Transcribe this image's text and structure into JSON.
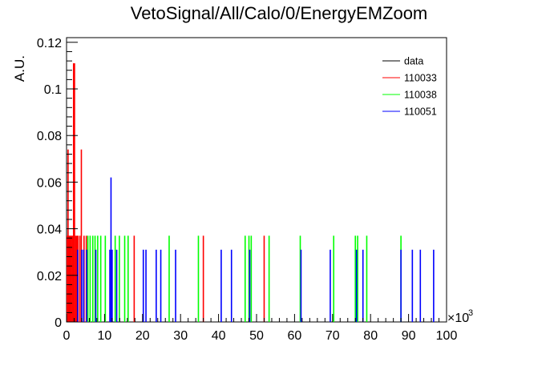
{
  "chart_data": {
    "type": "bar",
    "title": "VetoSignal/All/Calo/0/EnergyEMZoom",
    "ylabel": "A.U.",
    "xlabel": "",
    "x_exponent_base": "×10",
    "x_exponent_power": "3",
    "xlim": [
      0,
      100
    ],
    "ylim": [
      0,
      0.122
    ],
    "x_ticks": [
      0,
      10,
      20,
      30,
      40,
      50,
      60,
      70,
      80,
      90,
      100
    ],
    "x_tick_labels": [
      "0",
      "10",
      "20",
      "30",
      "40",
      "50",
      "60",
      "70",
      "80",
      "90",
      "100"
    ],
    "y_ticks": [
      0,
      0.02,
      0.04,
      0.06,
      0.08,
      0.1,
      0.12
    ],
    "y_tick_labels": [
      "0",
      "0.02",
      "0.04",
      "0.06",
      "0.08",
      "0.1",
      "0.12"
    ],
    "legend_position": "top-right",
    "series": [
      {
        "name": "data",
        "color": "#000000",
        "x": [],
        "values": []
      },
      {
        "name": "110033",
        "color": "#ff0000",
        "x": [
          0.15,
          0.4,
          0.7,
          1.0,
          1.3,
          1.6,
          1.85,
          2.1,
          2.4,
          2.7,
          3.0,
          3.5,
          3.9,
          4.6,
          5.2,
          17.8,
          36.0,
          52.0
        ],
        "values": [
          0.037,
          0.074,
          0.037,
          0.037,
          0.037,
          0.037,
          0.111,
          0.111,
          0.037,
          0.037,
          0.037,
          0.037,
          0.074,
          0.037,
          0.037,
          0.037,
          0.037,
          0.037
        ]
      },
      {
        "name": "110038",
        "color": "#00ff00",
        "x": [
          5.6,
          6.2,
          6.9,
          7.5,
          8.2,
          9.0,
          10.2,
          12.8,
          13.9,
          15.3,
          16.2,
          27.0,
          34.7,
          47.0,
          48.0,
          48.6,
          53.3,
          61.5,
          70.3,
          76.0,
          76.6,
          79.0,
          88.0
        ],
        "values": [
          0.037,
          0.037,
          0.037,
          0.037,
          0.037,
          0.037,
          0.037,
          0.037,
          0.037,
          0.037,
          0.037,
          0.037,
          0.037,
          0.037,
          0.037,
          0.037,
          0.037,
          0.037,
          0.037,
          0.037,
          0.037,
          0.037,
          0.037
        ]
      },
      {
        "name": "110051",
        "color": "#0000ff",
        "x": [
          2.9,
          4.0,
          4.5,
          5.3,
          7.7,
          11.4,
          11.7,
          12.0,
          13.2,
          20.2,
          20.9,
          23.6,
          24.8,
          28.7,
          40.7,
          43.4,
          48.2,
          61.7,
          69.4,
          76.3,
          78.0,
          88.0,
          91.0,
          93.1,
          96.6
        ],
        "values": [
          0.031,
          0.031,
          0.031,
          0.031,
          0.031,
          0.031,
          0.062,
          0.031,
          0.031,
          0.031,
          0.031,
          0.031,
          0.031,
          0.031,
          0.031,
          0.031,
          0.031,
          0.031,
          0.031,
          0.031,
          0.031,
          0.031,
          0.031,
          0.031,
          0.031
        ]
      }
    ]
  }
}
